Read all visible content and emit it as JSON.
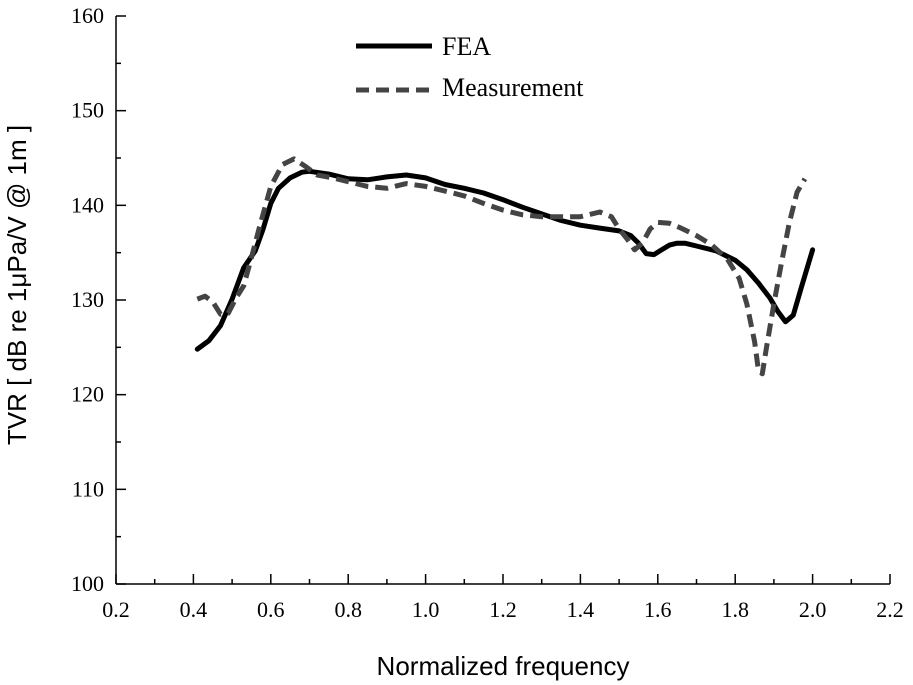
{
  "chart_data": {
    "type": "line",
    "xlabel": "Normalized frequency",
    "ylabel": "TVR [ dB re 1μPa/V @ 1m ]",
    "xlim": [
      0.2,
      2.2
    ],
    "ylim": [
      100,
      160
    ],
    "x_ticks": [
      "0.2",
      "0.4",
      "0.6",
      "0.8",
      "1.0",
      "1.2",
      "1.4",
      "1.6",
      "1.8",
      "2.0",
      "2.2"
    ],
    "y_ticks": [
      "100",
      "110",
      "120",
      "130",
      "140",
      "150",
      "160"
    ],
    "grid": false,
    "legend_position": "top-center",
    "series": [
      {
        "name": "FEA",
        "color": "#000000",
        "style": "solid",
        "x": [
          0.41,
          0.44,
          0.47,
          0.5,
          0.53,
          0.56,
          0.58,
          0.6,
          0.62,
          0.65,
          0.68,
          0.7,
          0.75,
          0.8,
          0.85,
          0.9,
          0.95,
          1.0,
          1.05,
          1.1,
          1.15,
          1.2,
          1.25,
          1.3,
          1.35,
          1.4,
          1.45,
          1.5,
          1.53,
          1.55,
          1.57,
          1.59,
          1.61,
          1.63,
          1.65,
          1.67,
          1.7,
          1.75,
          1.8,
          1.83,
          1.86,
          1.89,
          1.91,
          1.93,
          1.95,
          1.97,
          2.0
        ],
        "y": [
          124.8,
          125.7,
          127.3,
          130.1,
          133.4,
          135.2,
          137.5,
          140.2,
          141.8,
          142.9,
          143.5,
          143.6,
          143.3,
          142.8,
          142.7,
          143.0,
          143.2,
          142.9,
          142.2,
          141.8,
          141.3,
          140.6,
          139.8,
          139.1,
          138.4,
          137.9,
          137.6,
          137.3,
          136.8,
          136.0,
          134.9,
          134.8,
          135.3,
          135.8,
          136.0,
          136.0,
          135.7,
          135.2,
          134.2,
          133.2,
          131.8,
          130.2,
          128.8,
          127.7,
          128.4,
          131.2,
          135.3
        ]
      },
      {
        "name": "Measurement",
        "color": "#444444",
        "style": "dashed",
        "x": [
          0.41,
          0.43,
          0.45,
          0.47,
          0.49,
          0.51,
          0.53,
          0.55,
          0.57,
          0.6,
          0.63,
          0.66,
          0.69,
          0.72,
          0.76,
          0.8,
          0.85,
          0.9,
          0.95,
          1.0,
          1.05,
          1.1,
          1.15,
          1.2,
          1.25,
          1.3,
          1.35,
          1.4,
          1.45,
          1.48,
          1.5,
          1.52,
          1.54,
          1.56,
          1.58,
          1.6,
          1.63,
          1.66,
          1.7,
          1.74,
          1.78,
          1.81,
          1.83,
          1.85,
          1.86,
          1.87,
          1.88,
          1.9,
          1.92,
          1.94,
          1.96,
          1.98
        ],
        "y": [
          130.1,
          130.4,
          129.8,
          128.5,
          128.6,
          130.2,
          131.5,
          134.5,
          137.6,
          142.0,
          144.3,
          144.9,
          144.1,
          143.2,
          142.9,
          142.5,
          142.0,
          141.8,
          142.3,
          142.0,
          141.5,
          141.0,
          140.2,
          139.5,
          139.0,
          138.8,
          138.8,
          138.8,
          139.3,
          138.8,
          137.5,
          136.5,
          135.3,
          136.0,
          137.5,
          138.2,
          138.1,
          137.6,
          136.8,
          135.8,
          134.3,
          132.3,
          129.6,
          125.6,
          122.6,
          122.2,
          124.8,
          129.6,
          134.0,
          138.2,
          141.4,
          142.8
        ]
      }
    ]
  }
}
